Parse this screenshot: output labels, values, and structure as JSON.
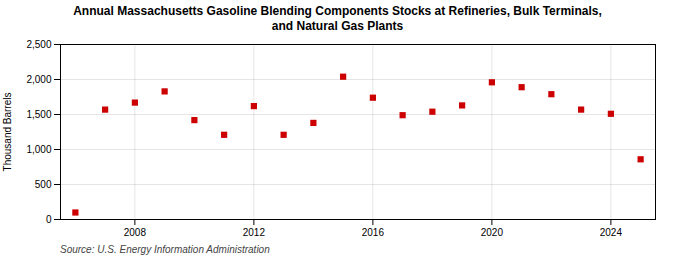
{
  "chart_data": {
    "type": "scatter",
    "title": "Annual Massachusetts Gasoline Blending Components Stocks at Refineries, Bulk Terminals,\nand Natural Gas Plants",
    "ylabel": "Thousand Barrels",
    "source": "Source: U.S. Energy Information Administration",
    "x": [
      2006,
      2007,
      2008,
      2009,
      2010,
      2011,
      2012,
      2013,
      2014,
      2015,
      2016,
      2017,
      2018,
      2019,
      2020,
      2021,
      2022,
      2023,
      2024,
      2025
    ],
    "values": [
      100,
      1570,
      1670,
      1830,
      1420,
      1210,
      1620,
      1210,
      1380,
      2040,
      1740,
      1490,
      1540,
      1630,
      1960,
      1890,
      1790,
      1570,
      1510,
      860
    ],
    "color": "#cc0000",
    "marker": "square",
    "xlim": [
      2005.5,
      2025.5
    ],
    "xticks": [
      2008,
      2012,
      2016,
      2020,
      2024
    ],
    "ylim": [
      0,
      2500
    ],
    "yticks": [
      0,
      500,
      {
        "value": 1000,
        "label": "1,000"
      },
      {
        "value": 1500,
        "label": "1,500"
      },
      {
        "value": 2000,
        "label": "2,000"
      },
      {
        "value": 2500,
        "label": "2,500"
      }
    ],
    "grid": true
  }
}
